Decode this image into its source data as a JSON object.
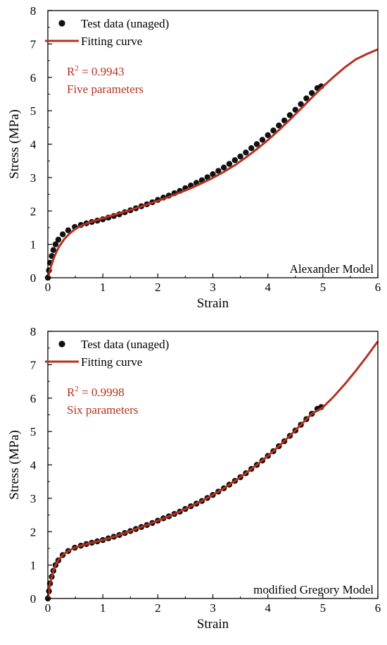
{
  "colors": {
    "fit": "#b5311f",
    "point": "#111111",
    "annotation": "#b5311f"
  },
  "chart_data": [
    {
      "type": "scatter",
      "xlabel": "Strain",
      "ylabel": "Stress (MPa)",
      "xlim": [
        0,
        6
      ],
      "ylim": [
        0,
        8
      ],
      "xticks": [
        "0",
        "1",
        "2",
        "3",
        "4",
        "5",
        "6"
      ],
      "yticks": [
        "0",
        "1",
        "2",
        "3",
        "4",
        "5",
        "6",
        "7",
        "8"
      ],
      "legend": {
        "placement": "top-left",
        "entries": [
          "Test data (unaged)",
          "Fitting curve"
        ]
      },
      "annotation_r2": "R² = 0.9943",
      "annotation_params": "Five parameters",
      "model_label": "Alexander Model",
      "series": [
        {
          "name": "Test data (unaged)",
          "kind": "points",
          "x": [
            0.0,
            0.02,
            0.04,
            0.07,
            0.1,
            0.14,
            0.19,
            0.27,
            0.37,
            0.49,
            0.6,
            0.7,
            0.8,
            0.9,
            1.0,
            1.1,
            1.2,
            1.3,
            1.4,
            1.5,
            1.6,
            1.7,
            1.8,
            1.9,
            2.0,
            2.1,
            2.2,
            2.3,
            2.4,
            2.5,
            2.6,
            2.7,
            2.8,
            2.9,
            3.0,
            3.1,
            3.2,
            3.3,
            3.4,
            3.5,
            3.6,
            3.7,
            3.8,
            3.9,
            4.0,
            4.1,
            4.2,
            4.3,
            4.4,
            4.5,
            4.6,
            4.7,
            4.8,
            4.9,
            4.97
          ],
          "y": [
            0.0,
            0.22,
            0.45,
            0.65,
            0.83,
            1.0,
            1.14,
            1.3,
            1.42,
            1.52,
            1.58,
            1.63,
            1.67,
            1.71,
            1.75,
            1.8,
            1.85,
            1.9,
            1.96,
            2.02,
            2.08,
            2.14,
            2.2,
            2.26,
            2.33,
            2.4,
            2.46,
            2.53,
            2.6,
            2.68,
            2.76,
            2.84,
            2.92,
            3.01,
            3.1,
            3.2,
            3.3,
            3.41,
            3.52,
            3.63,
            3.75,
            3.88,
            4.0,
            4.13,
            4.27,
            4.41,
            4.56,
            4.71,
            4.87,
            5.03,
            5.2,
            5.37,
            5.53,
            5.68,
            5.73
          ]
        },
        {
          "name": "Fitting curve",
          "kind": "line",
          "x": [
            0.0,
            0.05,
            0.1,
            0.15,
            0.2,
            0.3,
            0.4,
            0.5,
            0.6,
            0.7,
            0.8,
            0.9,
            1.0,
            1.2,
            1.4,
            1.6,
            1.8,
            2.0,
            2.2,
            2.4,
            2.6,
            2.8,
            3.0,
            3.2,
            3.4,
            3.6,
            3.8,
            4.0,
            4.2,
            4.4,
            4.6,
            4.8,
            5.0,
            5.2,
            5.4,
            5.6,
            5.8,
            6.0
          ],
          "y": [
            0.0,
            0.3,
            0.55,
            0.75,
            0.92,
            1.16,
            1.33,
            1.46,
            1.55,
            1.62,
            1.68,
            1.73,
            1.78,
            1.88,
            1.98,
            2.08,
            2.19,
            2.3,
            2.42,
            2.55,
            2.68,
            2.83,
            2.99,
            3.17,
            3.37,
            3.6,
            3.85,
            4.12,
            4.42,
            4.73,
            5.06,
            5.39,
            5.72,
            6.02,
            6.3,
            6.54,
            6.7,
            6.84
          ]
        }
      ]
    },
    {
      "type": "scatter",
      "xlabel": "Strain",
      "ylabel": "Stress (MPa)",
      "xlim": [
        0,
        6
      ],
      "ylim": [
        0,
        8
      ],
      "xticks": [
        "0",
        "1",
        "2",
        "3",
        "4",
        "5",
        "6"
      ],
      "yticks": [
        "0",
        "1",
        "2",
        "3",
        "4",
        "5",
        "6",
        "7",
        "8"
      ],
      "legend": {
        "placement": "top-left",
        "entries": [
          "Test data (unaged)",
          "Fitting curve"
        ]
      },
      "annotation_r2": "R² = 0.9998",
      "annotation_params": "Six parameters",
      "model_label": "modified Gregory Model",
      "series": [
        {
          "name": "Test data (unaged)",
          "kind": "points",
          "x": [
            0.0,
            0.02,
            0.04,
            0.07,
            0.1,
            0.14,
            0.19,
            0.27,
            0.37,
            0.49,
            0.6,
            0.7,
            0.8,
            0.9,
            1.0,
            1.1,
            1.2,
            1.3,
            1.4,
            1.5,
            1.6,
            1.7,
            1.8,
            1.9,
            2.0,
            2.1,
            2.2,
            2.3,
            2.4,
            2.5,
            2.6,
            2.7,
            2.8,
            2.9,
            3.0,
            3.1,
            3.2,
            3.3,
            3.4,
            3.5,
            3.6,
            3.7,
            3.8,
            3.9,
            4.0,
            4.1,
            4.2,
            4.3,
            4.4,
            4.5,
            4.6,
            4.7,
            4.8,
            4.9,
            4.97
          ],
          "y": [
            0.0,
            0.22,
            0.45,
            0.65,
            0.83,
            1.0,
            1.14,
            1.3,
            1.42,
            1.52,
            1.58,
            1.63,
            1.67,
            1.71,
            1.75,
            1.8,
            1.85,
            1.9,
            1.96,
            2.02,
            2.08,
            2.14,
            2.2,
            2.26,
            2.33,
            2.4,
            2.46,
            2.53,
            2.6,
            2.68,
            2.76,
            2.84,
            2.92,
            3.01,
            3.1,
            3.2,
            3.3,
            3.41,
            3.52,
            3.63,
            3.75,
            3.88,
            4.0,
            4.13,
            4.27,
            4.41,
            4.56,
            4.71,
            4.87,
            5.03,
            5.2,
            5.37,
            5.53,
            5.68,
            5.73
          ]
        },
        {
          "name": "Fitting curve",
          "kind": "line",
          "x": [
            0.0,
            0.02,
            0.04,
            0.07,
            0.1,
            0.14,
            0.19,
            0.27,
            0.37,
            0.49,
            0.6,
            0.8,
            1.0,
            1.2,
            1.4,
            1.6,
            1.8,
            2.0,
            2.2,
            2.4,
            2.6,
            2.8,
            3.0,
            3.2,
            3.4,
            3.6,
            3.8,
            4.0,
            4.2,
            4.4,
            4.6,
            4.8,
            5.0,
            5.2,
            5.4,
            5.6,
            5.8,
            6.0
          ],
          "y": [
            0.0,
            0.22,
            0.45,
            0.65,
            0.83,
            1.0,
            1.14,
            1.3,
            1.42,
            1.52,
            1.58,
            1.67,
            1.75,
            1.85,
            1.96,
            2.08,
            2.2,
            2.33,
            2.46,
            2.6,
            2.76,
            2.92,
            3.1,
            3.3,
            3.52,
            3.75,
            4.0,
            4.27,
            4.56,
            4.87,
            5.2,
            5.53,
            5.72,
            6.05,
            6.42,
            6.82,
            7.25,
            7.7
          ]
        }
      ]
    }
  ]
}
